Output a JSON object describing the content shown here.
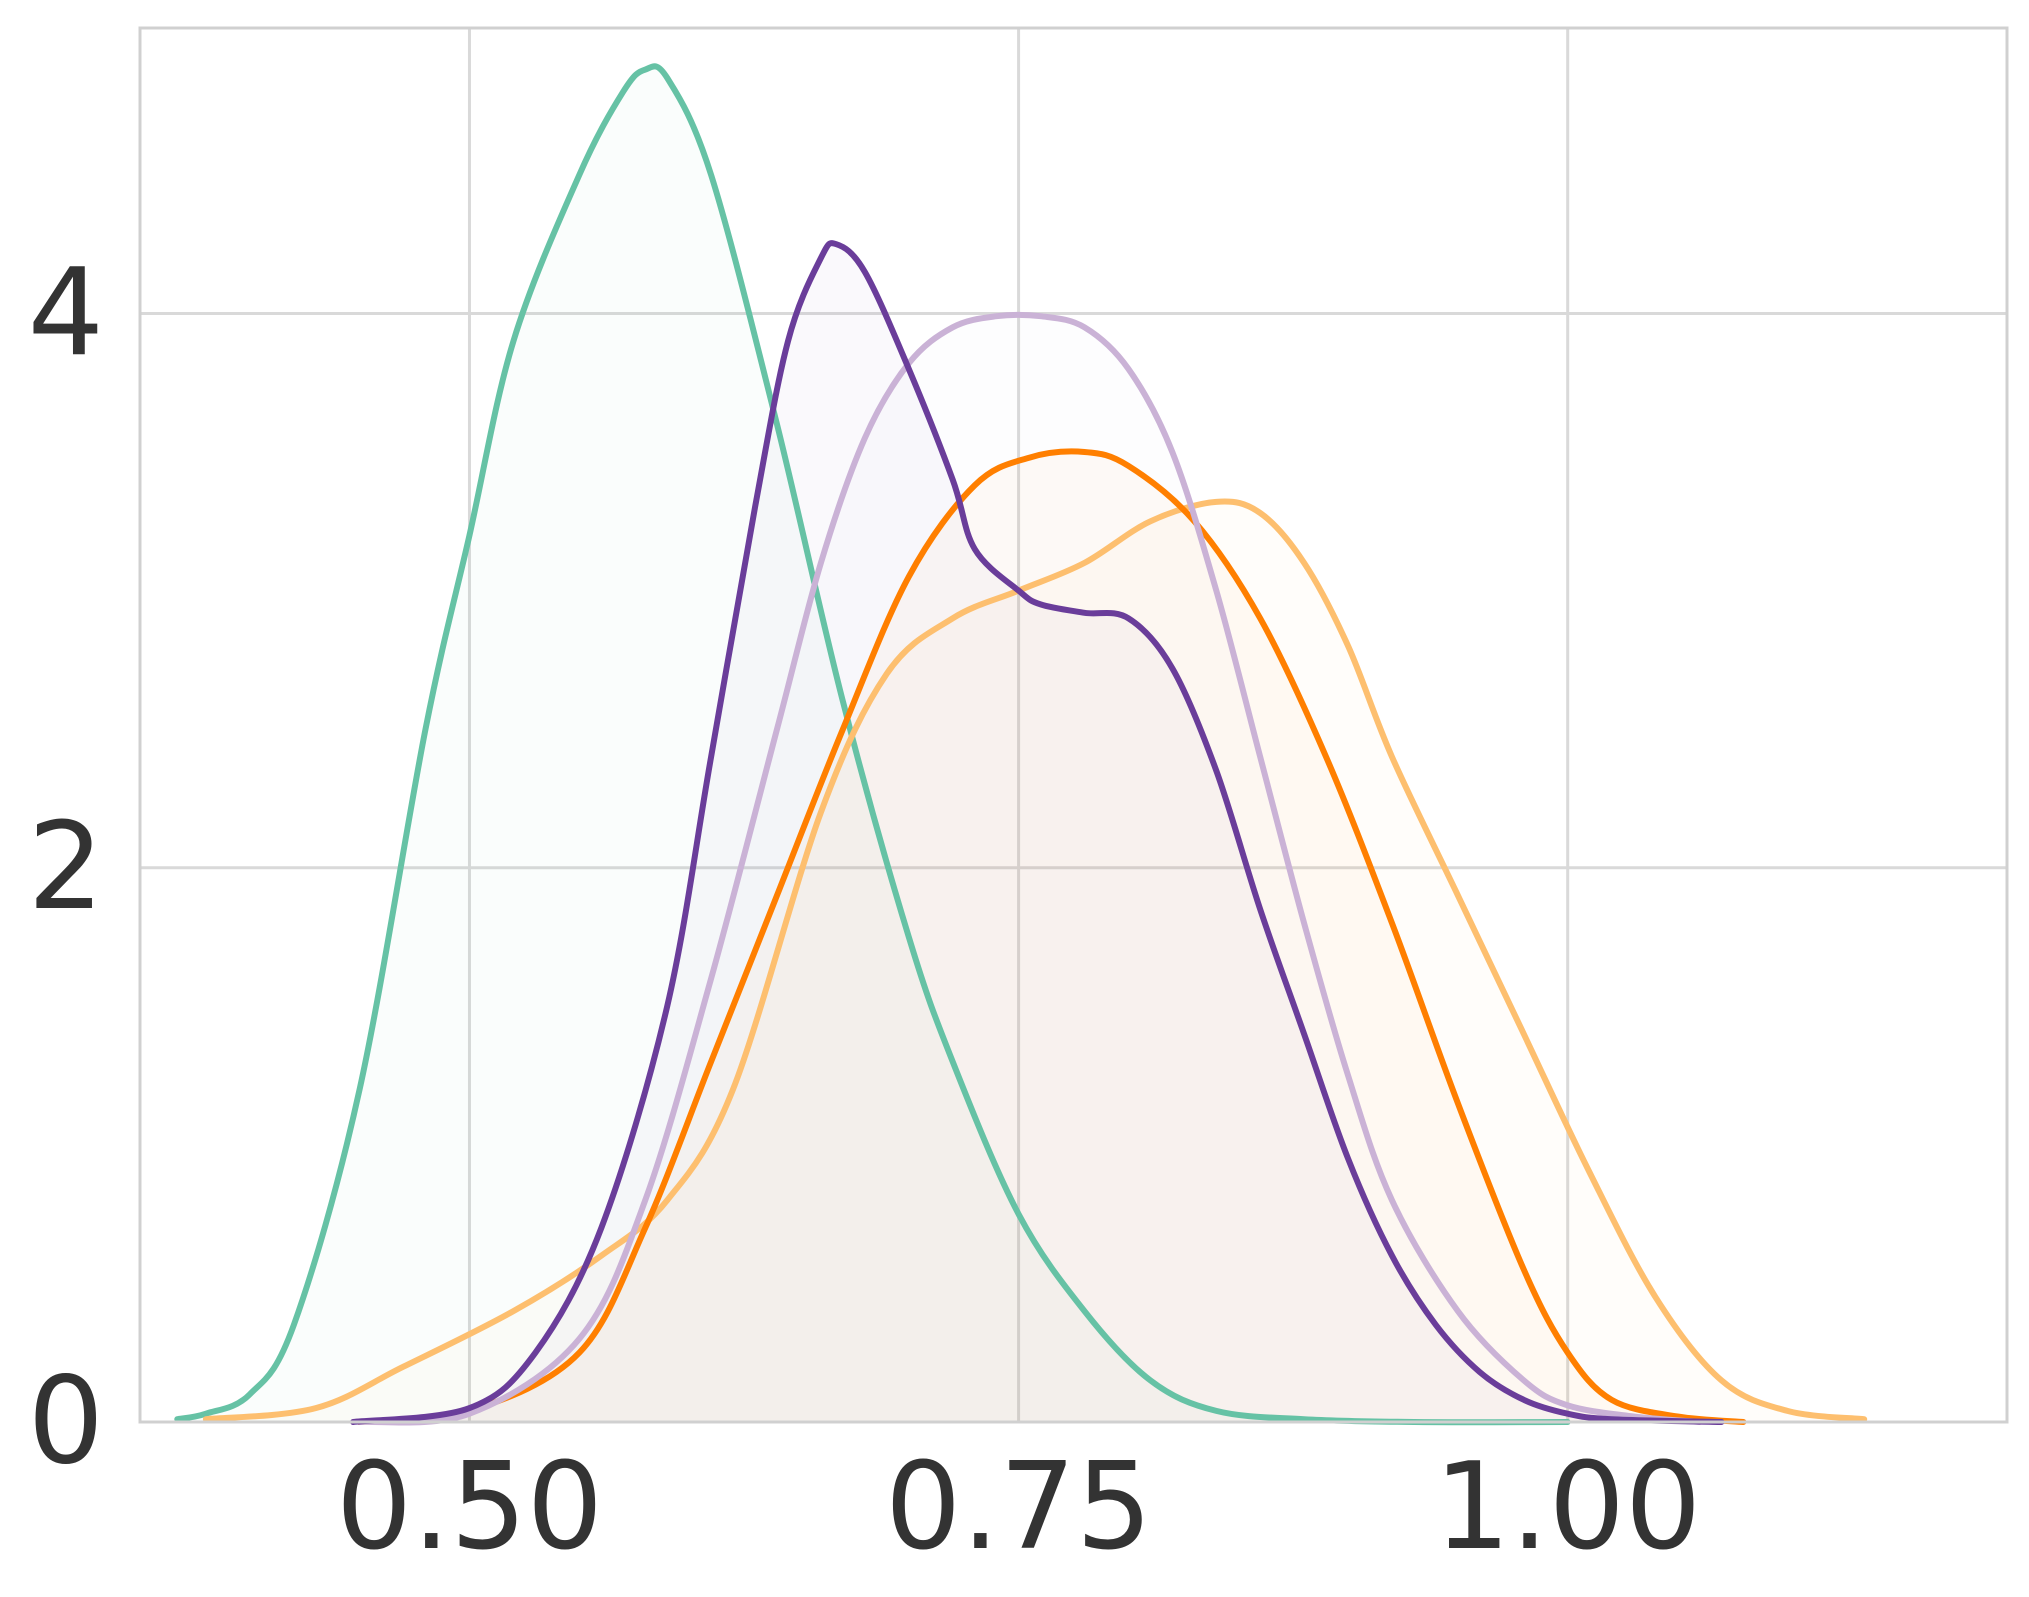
{
  "chart_data": {
    "type": "area",
    "title": "",
    "xlabel": "",
    "ylabel": "",
    "xlim": [
      0.35,
      1.2
    ],
    "ylim": [
      0,
      5.03
    ],
    "grid": true,
    "legend": "none",
    "x_ticks": [
      {
        "value": 0.5,
        "label": "0.50"
      },
      {
        "value": 0.75,
        "label": "0.75"
      },
      {
        "value": 1.0,
        "label": "1.00"
      }
    ],
    "y_ticks": [
      {
        "value": 0,
        "label": "0"
      },
      {
        "value": 2,
        "label": "2"
      },
      {
        "value": 4,
        "label": "4"
      }
    ],
    "series": [
      {
        "color": "#66c2a5",
        "fill_opacity": 0.03,
        "points": [
          [
            0.367,
            0.01
          ],
          [
            0.38,
            0.03
          ],
          [
            0.4,
            0.1
          ],
          [
            0.42,
            0.35
          ],
          [
            0.45,
            1.2
          ],
          [
            0.48,
            2.5
          ],
          [
            0.5,
            3.2
          ],
          [
            0.52,
            3.9
          ],
          [
            0.55,
            4.5
          ],
          [
            0.57,
            4.8
          ],
          [
            0.58,
            4.88
          ],
          [
            0.59,
            4.85
          ],
          [
            0.61,
            4.5
          ],
          [
            0.64,
            3.6
          ],
          [
            0.67,
            2.6
          ],
          [
            0.7,
            1.75
          ],
          [
            0.72,
            1.3
          ],
          [
            0.75,
            0.75
          ],
          [
            0.78,
            0.4
          ],
          [
            0.81,
            0.15
          ],
          [
            0.84,
            0.04
          ],
          [
            0.88,
            0.01
          ],
          [
            0.93,
            0.0
          ],
          [
            1.0,
            0.0
          ]
        ]
      },
      {
        "color": "#fdbf6f",
        "fill_opacity": 0.03,
        "points": [
          [
            0.38,
            0.01
          ],
          [
            0.43,
            0.05
          ],
          [
            0.47,
            0.2
          ],
          [
            0.52,
            0.4
          ],
          [
            0.56,
            0.6
          ],
          [
            0.59,
            0.8
          ],
          [
            0.62,
            1.2
          ],
          [
            0.66,
            2.2
          ],
          [
            0.69,
            2.7
          ],
          [
            0.72,
            2.9
          ],
          [
            0.75,
            3.0
          ],
          [
            0.78,
            3.1
          ],
          [
            0.81,
            3.25
          ],
          [
            0.84,
            3.32
          ],
          [
            0.86,
            3.28
          ],
          [
            0.88,
            3.1
          ],
          [
            0.9,
            2.8
          ],
          [
            0.92,
            2.4
          ],
          [
            0.95,
            1.9
          ],
          [
            0.98,
            1.4
          ],
          [
            1.01,
            0.9
          ],
          [
            1.04,
            0.45
          ],
          [
            1.07,
            0.15
          ],
          [
            1.1,
            0.04
          ],
          [
            1.135,
            0.01
          ]
        ]
      },
      {
        "color": "#ff7f00",
        "fill_opacity": 0.03,
        "points": [
          [
            0.45,
            0.0
          ],
          [
            0.5,
            0.04
          ],
          [
            0.55,
            0.25
          ],
          [
            0.58,
            0.7
          ],
          [
            0.61,
            1.3
          ],
          [
            0.64,
            1.9
          ],
          [
            0.67,
            2.5
          ],
          [
            0.7,
            3.05
          ],
          [
            0.73,
            3.38
          ],
          [
            0.755,
            3.48
          ],
          [
            0.78,
            3.5
          ],
          [
            0.8,
            3.45
          ],
          [
            0.83,
            3.25
          ],
          [
            0.86,
            2.9
          ],
          [
            0.89,
            2.4
          ],
          [
            0.92,
            1.8
          ],
          [
            0.95,
            1.15
          ],
          [
            0.98,
            0.55
          ],
          [
            1.0,
            0.25
          ],
          [
            1.02,
            0.08
          ],
          [
            1.05,
            0.02
          ],
          [
            1.08,
            0.0
          ]
        ]
      },
      {
        "color": "#cab2d6",
        "fill_opacity": 0.03,
        "points": [
          [
            0.45,
            0.0
          ],
          [
            0.5,
            0.03
          ],
          [
            0.55,
            0.3
          ],
          [
            0.58,
            0.8
          ],
          [
            0.61,
            1.6
          ],
          [
            0.64,
            2.5
          ],
          [
            0.66,
            3.1
          ],
          [
            0.68,
            3.55
          ],
          [
            0.7,
            3.82
          ],
          [
            0.72,
            3.95
          ],
          [
            0.74,
            3.99
          ],
          [
            0.76,
            3.99
          ],
          [
            0.78,
            3.95
          ],
          [
            0.8,
            3.8
          ],
          [
            0.82,
            3.5
          ],
          [
            0.84,
            3.0
          ],
          [
            0.86,
            2.4
          ],
          [
            0.88,
            1.8
          ],
          [
            0.9,
            1.25
          ],
          [
            0.92,
            0.8
          ],
          [
            0.95,
            0.4
          ],
          [
            0.98,
            0.15
          ],
          [
            1.0,
            0.06
          ],
          [
            1.03,
            0.02
          ],
          [
            1.06,
            0.0
          ]
        ]
      },
      {
        "color": "#6a3d9a",
        "fill_opacity": 0.03,
        "points": [
          [
            0.447,
            0.0
          ],
          [
            0.5,
            0.05
          ],
          [
            0.53,
            0.25
          ],
          [
            0.56,
            0.7
          ],
          [
            0.59,
            1.5
          ],
          [
            0.61,
            2.4
          ],
          [
            0.63,
            3.3
          ],
          [
            0.645,
            3.9
          ],
          [
            0.66,
            4.2
          ],
          [
            0.667,
            4.25
          ],
          [
            0.68,
            4.15
          ],
          [
            0.7,
            3.8
          ],
          [
            0.72,
            3.4
          ],
          [
            0.73,
            3.15
          ],
          [
            0.75,
            3.0
          ],
          [
            0.76,
            2.95
          ],
          [
            0.78,
            2.92
          ],
          [
            0.8,
            2.9
          ],
          [
            0.82,
            2.72
          ],
          [
            0.84,
            2.35
          ],
          [
            0.86,
            1.85
          ],
          [
            0.88,
            1.4
          ],
          [
            0.9,
            0.95
          ],
          [
            0.92,
            0.6
          ],
          [
            0.94,
            0.35
          ],
          [
            0.96,
            0.18
          ],
          [
            0.98,
            0.08
          ],
          [
            1.0,
            0.03
          ],
          [
            1.02,
            0.01
          ],
          [
            1.07,
            0.0
          ]
        ]
      }
    ]
  }
}
